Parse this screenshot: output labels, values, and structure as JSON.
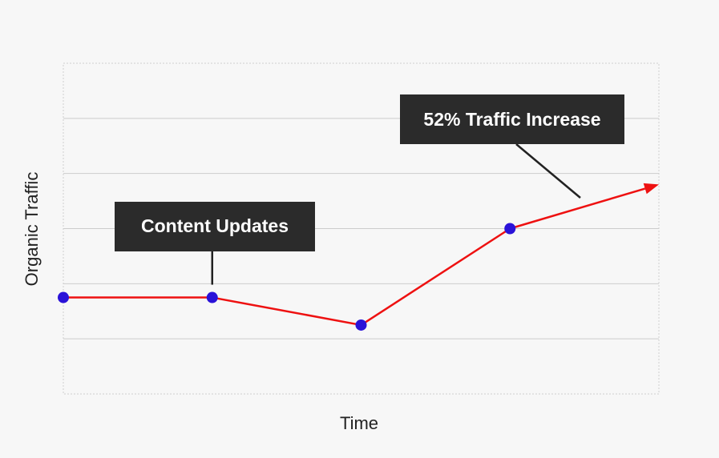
{
  "chart_data": {
    "type": "line",
    "title": "",
    "xlabel": "Time",
    "ylabel": "Organic Traffic",
    "x": [
      0,
      1,
      2,
      3,
      4
    ],
    "values": [
      1.75,
      1.75,
      1.25,
      3.0,
      3.8
    ],
    "xlim": [
      0,
      4
    ],
    "ylim": [
      0,
      6
    ],
    "grid": "horizontal",
    "end_marker": "arrow",
    "colors": {
      "line": "#ee1111",
      "points": "#2a12d8",
      "grid": "#cccccc",
      "callout_bg": "#2b2b2b",
      "callout_text": "#ffffff",
      "leader": "#222222"
    },
    "annotations": [
      {
        "text": "Content Updates",
        "target_index": 1
      },
      {
        "text": "52% Traffic Increase",
        "target_index": 3
      }
    ]
  }
}
